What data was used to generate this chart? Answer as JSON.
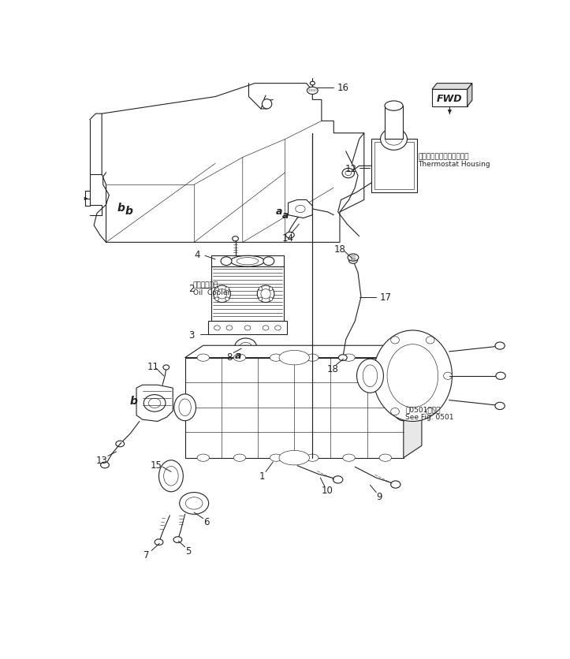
{
  "bg_color": "#ffffff",
  "lc": "#222222",
  "lw": 0.8,
  "tlw": 0.45,
  "oil_cooler_jp": "オイルクーラ",
  "oil_cooler_en": "Oil  Cooler",
  "thermostat_jp": "サーモスタットハウジング",
  "thermostat_en": "Thermostat Housing",
  "see_fig_jp": "第0501図参照",
  "see_fig_en": "See Fig. 0501"
}
